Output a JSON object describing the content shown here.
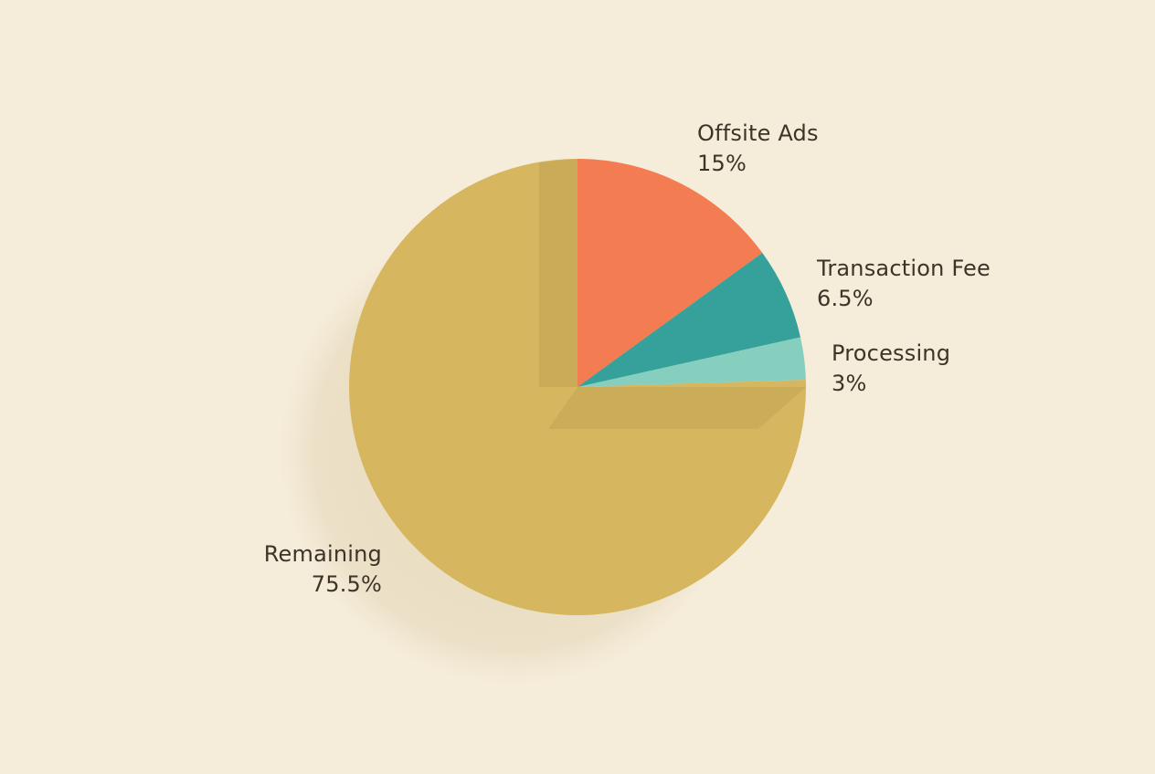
{
  "chart_data": {
    "type": "pie",
    "title": "",
    "start_angle_deg": 0,
    "direction": "clockwise",
    "center": [
      632,
      424
    ],
    "radius": 250,
    "slices": [
      {
        "label": "Offsite Ads",
        "value": 15,
        "display": "15%",
        "color": "#f47c52"
      },
      {
        "label": "Transaction Fee",
        "value": 6.5,
        "display": "6.5%",
        "color": "#36a19a"
      },
      {
        "label": "Processing",
        "value": 3,
        "display": "3%",
        "color": "#86cfbf"
      },
      {
        "label": "Remaining",
        "value": 75.5,
        "display": "75.5%",
        "color": "#d6b65e"
      }
    ],
    "legend": "none",
    "grid": false
  },
  "labels": {
    "offsite_ads": {
      "name": "Offsite Ads",
      "value": "15%"
    },
    "transaction_fee": {
      "name": "Transaction Fee",
      "value": "6.5%"
    },
    "processing": {
      "name": "Processing",
      "value": "3%"
    },
    "remaining": {
      "name": "Remaining",
      "value": "75.5%"
    }
  },
  "colors": {
    "background": "#f5ecda",
    "text": "#3d3428",
    "shadow": "#e6d9bd"
  }
}
